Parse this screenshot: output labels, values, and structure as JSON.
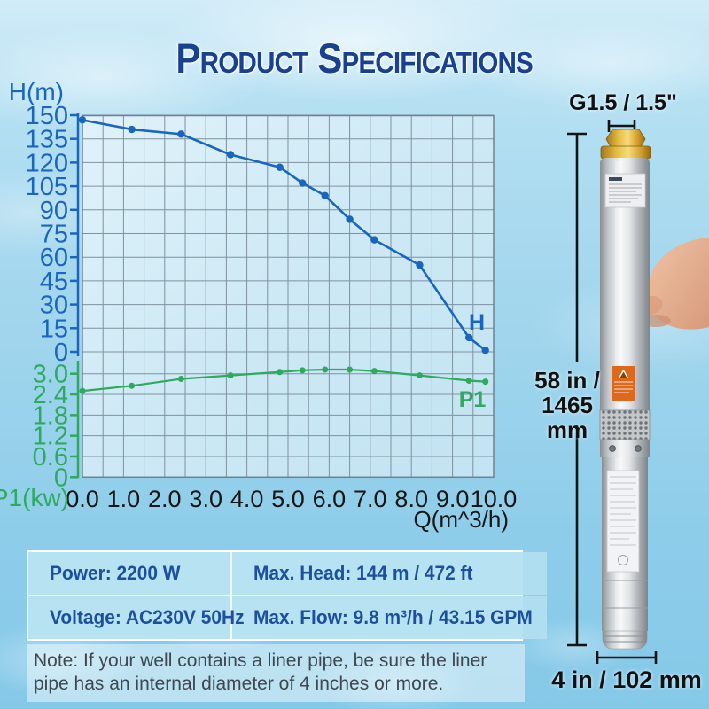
{
  "title": "Product Specifications",
  "chart_data": {
    "type": "line",
    "title": "",
    "x_label": "Q(m^3/h)",
    "x_ticks": [
      "0.0",
      "1.0",
      "2.0",
      "3.0",
      "4.0",
      "5.0",
      "6.0",
      "7.0",
      "8.0",
      "9.0",
      "10.0"
    ],
    "x_range": [
      0,
      10
    ],
    "left_axis_top_label": "H(m)",
    "left_axis_bottom_label": "P1(kw)",
    "grid": true,
    "legend_position": "inline-end-of-curve",
    "h_axis": {
      "label": "H(m)",
      "unit": "m",
      "ticks": [
        150,
        135,
        120,
        105,
        90,
        75,
        60,
        45,
        30,
        15,
        0
      ],
      "range": [
        0,
        150
      ],
      "color": "#1a66bf"
    },
    "p_axis": {
      "label": "P1(kw)",
      "unit": "kw",
      "ticks": [
        "3.0",
        "2.4",
        "1.8",
        "1.2",
        "0.6",
        "0"
      ],
      "range": [
        0,
        3.0
      ],
      "color": "#2fa95f"
    },
    "series": [
      {
        "name": "H",
        "axis": "H",
        "color": "#1a66bf",
        "x": [
          0,
          1.2,
          2.4,
          3.6,
          4.8,
          5.35,
          5.9,
          6.5,
          7.1,
          8.2,
          9.4,
          9.8
        ],
        "y": [
          147,
          141,
          138,
          125,
          117,
          107,
          99,
          84,
          71,
          55,
          9,
          1
        ]
      },
      {
        "name": "P1",
        "axis": "P",
        "color": "#2fa95f",
        "x": [
          0,
          1.2,
          2.4,
          3.6,
          4.8,
          5.35,
          5.9,
          6.5,
          7.1,
          8.2,
          9.4,
          9.8
        ],
        "y": [
          2.5,
          2.65,
          2.85,
          2.95,
          3.05,
          3.1,
          3.12,
          3.12,
          3.08,
          2.95,
          2.8,
          2.77
        ]
      }
    ]
  },
  "pump": {
    "thread_label": "G1.5 / 1.5\"",
    "height_label_line1": "58 in /",
    "height_label_line2": "1465 mm",
    "diameter_label": "4 in / 102 mm"
  },
  "specs": {
    "power": "Power: 2200 W",
    "voltage": "Voltage: AC230V 50Hz",
    "max_head": "Max. Head: 144 m / 472 ft",
    "max_flow": "Max. Flow: 9.8 m³/h / 43.15 GPM"
  },
  "note": "Note: If your well contains a liner pipe, be sure the liner pipe has an internal diameter of 4 inches or more."
}
